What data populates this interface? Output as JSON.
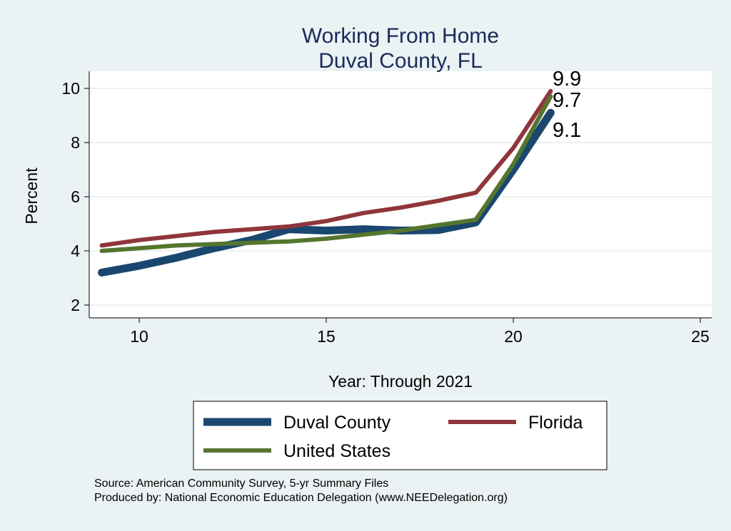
{
  "chart_data": {
    "type": "line",
    "title": "Working From Home",
    "subtitle": "Duval County, FL",
    "xlabel": "Year: Through 2021",
    "ylabel": "Percent",
    "xlim": [
      8.8,
      25.2
    ],
    "ylim": [
      1.6,
      10.5
    ],
    "xticks": [
      10,
      15,
      20,
      25
    ],
    "yticks": [
      2,
      4,
      6,
      8,
      10
    ],
    "grid": true,
    "legend_position": "bottom",
    "x": [
      9,
      10,
      11,
      12,
      13,
      14,
      15,
      16,
      17,
      18,
      19,
      20,
      21
    ],
    "series": [
      {
        "name": "Duval County",
        "color": "#1a476f",
        "values": [
          3.2,
          3.45,
          3.75,
          4.1,
          4.4,
          4.8,
          4.75,
          4.8,
          4.75,
          4.77,
          5.05,
          7.0,
          9.1
        ],
        "end_label": "9.1"
      },
      {
        "name": "Florida",
        "color": "#90353b",
        "values": [
          4.2,
          4.4,
          4.55,
          4.7,
          4.8,
          4.9,
          5.1,
          5.4,
          5.6,
          5.85,
          6.15,
          7.8,
          9.9
        ],
        "end_label": "9.9"
      },
      {
        "name": "United States",
        "color": "#55752f",
        "values": [
          4.0,
          4.1,
          4.2,
          4.25,
          4.3,
          4.35,
          4.45,
          4.6,
          4.75,
          4.95,
          5.15,
          7.2,
          9.7
        ],
        "end_label": "9.7"
      }
    ]
  },
  "notes": {
    "source": "Source: American Community Survey, 5-yr Summary Files",
    "produced": "Produced by: National Economic Education Delegation (www.NEEDelegation.org)"
  }
}
